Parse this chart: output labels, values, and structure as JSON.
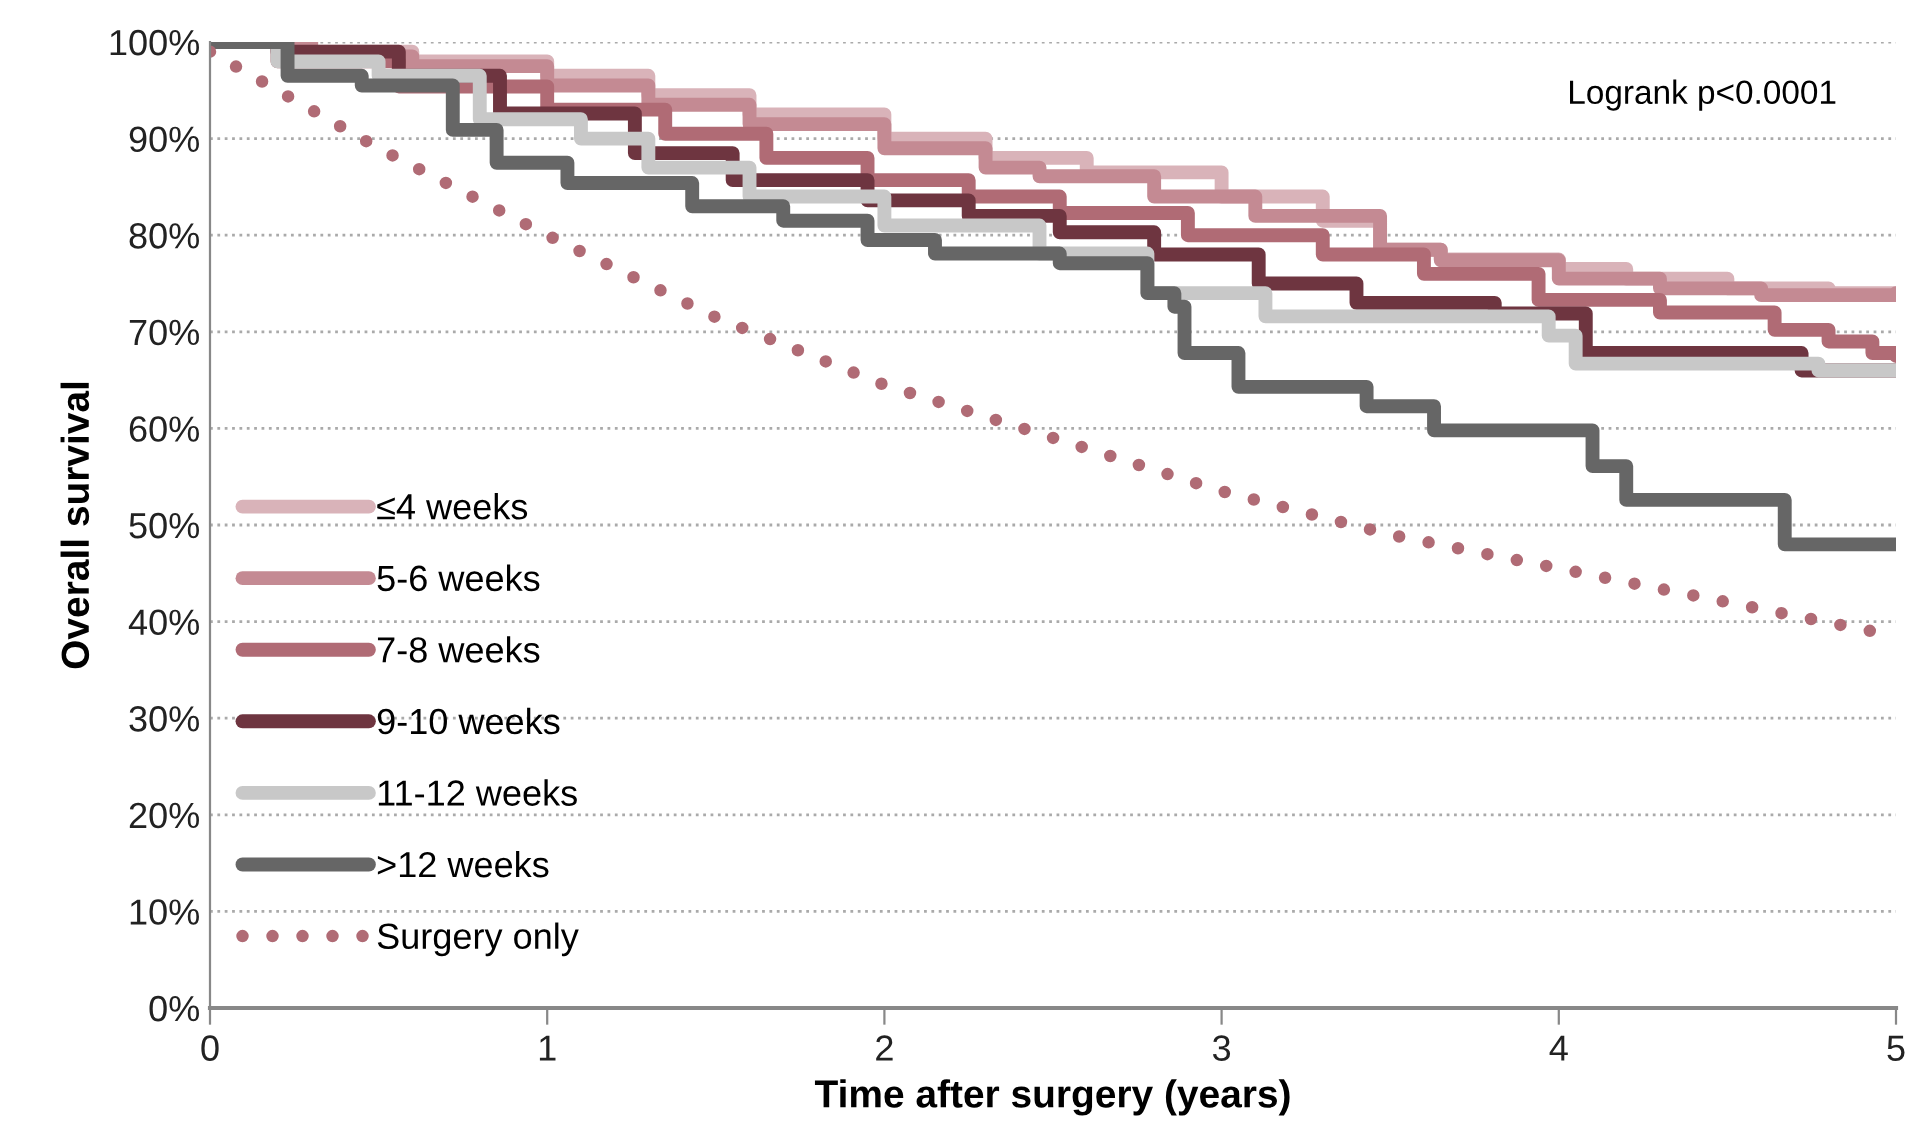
{
  "chart_data": {
    "type": "step",
    "xlabel": "Time after surgery (years)",
    "ylabel": "Overall survival",
    "annotations": [
      "Logrank p<0.0001"
    ],
    "xlim": [
      0,
      5
    ],
    "xticks": [
      0,
      1,
      2,
      3,
      4,
      5
    ],
    "ylim": [
      0,
      100
    ],
    "yticks": [
      {
        "value": 0,
        "label": "0%"
      },
      {
        "value": 10,
        "label": "10%"
      },
      {
        "value": 20,
        "label": "20%"
      },
      {
        "value": 30,
        "label": "30%"
      },
      {
        "value": 40,
        "label": "40%"
      },
      {
        "value": 50,
        "label": "50%"
      },
      {
        "value": 60,
        "label": "60%"
      },
      {
        "value": 70,
        "label": "70%"
      },
      {
        "value": 80,
        "label": "80%"
      },
      {
        "value": 90,
        "label": "90%"
      },
      {
        "value": 100,
        "label": "100%"
      }
    ],
    "grid": "y",
    "legend": "bottom left",
    "marker": "none",
    "series": [
      {
        "name": "≤4 weeks",
        "color": "#d9b3b9",
        "x": [
          0,
          0.3,
          0.6,
          1.0,
          1.3,
          1.6,
          2.0,
          2.3,
          2.6,
          3.0,
          3.3,
          3.47,
          3.65,
          4.0,
          4.2,
          4.5,
          4.8,
          5.0
        ],
        "values": [
          100,
          99,
          98,
          96.5,
          94.5,
          92.5,
          90,
          88,
          86.5,
          84,
          81.5,
          78.5,
          77.5,
          76.5,
          75.5,
          74.5,
          74,
          74
        ]
      },
      {
        "name": "5-6 weeks",
        "color": "#c48a93",
        "x": [
          0,
          0.3,
          0.6,
          1.0,
          1.3,
          1.6,
          2.0,
          2.3,
          2.46,
          2.8,
          3.1,
          3.47,
          3.65,
          4.0,
          4.3,
          4.6,
          5.0
        ],
        "values": [
          100,
          98.5,
          97.5,
          95.5,
          93.5,
          91.5,
          89,
          87,
          86.1,
          84,
          82,
          78.5,
          77.4,
          75.5,
          74.5,
          73.8,
          74
        ]
      },
      {
        "name": "7-8 weeks",
        "color": "#b06b75",
        "x": [
          0,
          0.2,
          0.56,
          1.0,
          1.35,
          1.65,
          1.95,
          2.25,
          2.52,
          2.9,
          3.3,
          3.6,
          3.94,
          4.3,
          4.64,
          4.8,
          4.93,
          5.0
        ],
        "values": [
          100,
          98,
          95.4,
          93,
          90.5,
          88,
          85.7,
          84,
          82.3,
          80,
          78,
          76,
          73.3,
          72,
          70.2,
          69,
          67.8,
          67.5
        ]
      },
      {
        "name": "9-10 weeks",
        "color": "#6e3540",
        "x": [
          0,
          0.2,
          0.56,
          0.86,
          1.26,
          1.55,
          1.95,
          2.25,
          2.52,
          2.8,
          3.11,
          3.4,
          3.81,
          4.08,
          4.72,
          5.0
        ],
        "values": [
          100,
          99,
          96.5,
          92.6,
          88.5,
          85.7,
          83.6,
          82,
          80.3,
          78,
          75,
          73,
          71.9,
          67.8,
          66,
          66
        ]
      },
      {
        "name": "11-12 weeks",
        "color": "#c8c8c8",
        "x": [
          0,
          0.2,
          0.5,
          0.8,
          1.1,
          1.3,
          1.6,
          2.0,
          2.46,
          2.78,
          3.13,
          3.97,
          4.05,
          4.77,
          5.0
        ],
        "values": [
          100,
          98,
          96.5,
          92,
          90,
          87,
          84,
          81,
          78.1,
          74,
          71.6,
          69.6,
          66.7,
          66,
          66
        ]
      },
      {
        "name": ">12 weeks",
        "color": "#666666",
        "x": [
          0,
          0.23,
          0.45,
          0.72,
          0.85,
          1.06,
          1.43,
          1.7,
          1.95,
          2.15,
          2.52,
          2.78,
          2.86,
          2.89,
          3.05,
          3.43,
          3.63,
          4.1,
          4.2,
          4.67,
          5.0
        ],
        "values": [
          100,
          96.5,
          95.5,
          90.9,
          87.5,
          85.4,
          83,
          81.5,
          79.5,
          78.1,
          77.1,
          74,
          72.6,
          67.8,
          64.3,
          62.3,
          59.8,
          56.1,
          52.6,
          48,
          48
        ]
      },
      {
        "name": "Surgery only",
        "color": "#b06b75",
        "type": "line",
        "line_style": "dotted",
        "x": [
          0,
          0.5,
          1.0,
          1.5,
          2.0,
          2.52,
          3.0,
          3.5,
          4.0,
          4.5,
          5.0
        ],
        "values": [
          99,
          89,
          80,
          71.5,
          64.5,
          58.8,
          53.5,
          49,
          45.5,
          42,
          38.5
        ]
      }
    ]
  }
}
